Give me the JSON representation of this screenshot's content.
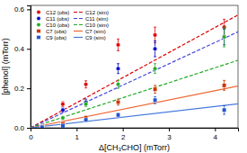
{
  "chart_data": {
    "type": "scatter",
    "xlabel": "Δ[CH₃CHO] (mTorr)",
    "ylabel": "[phenol] (mTorr)",
    "xlim": [
      0,
      4.5
    ],
    "ylim": [
      0,
      0.62
    ],
    "xticks": [
      0,
      1,
      2,
      3,
      4
    ],
    "yticks": [
      {
        "value": 0,
        "label": "0.0"
      },
      0.2,
      0.4,
      0.6
    ],
    "legend": "upper left",
    "series": [
      {
        "name": "C12 (obs)",
        "type": "scatter",
        "marker": "circle",
        "color": "#dd0000",
        "x": [
          0.25,
          0.7,
          1.2,
          1.9,
          2.7,
          4.2
        ],
        "values": [
          0.01,
          0.12,
          0.22,
          0.42,
          0.47,
          0.51
        ],
        "errors": [
          0.005,
          0.012,
          0.018,
          0.03,
          0.04,
          0.04
        ]
      },
      {
        "name": "C12 (sim)",
        "type": "line",
        "line_style": "dashed",
        "color": "#dd0000",
        "x": [
          0,
          4.5
        ],
        "values": [
          0,
          0.5715
        ]
      },
      {
        "name": "C11 (obs)",
        "type": "scatter",
        "marker": "circle",
        "color": "#0000cc",
        "x": [
          0.25,
          0.7,
          1.2,
          1.9,
          2.7,
          4.2
        ],
        "values": [
          0.01,
          0.09,
          0.13,
          0.3,
          0.4,
          0.46
        ],
        "errors": [
          0.005,
          0.01,
          0.015,
          0.025,
          0.04,
          0.04
        ]
      },
      {
        "name": "C11 (sim)",
        "type": "line",
        "line_style": "dashed",
        "color": "#4444dd",
        "x": [
          0,
          4.5
        ],
        "values": [
          0,
          0.486
        ]
      },
      {
        "name": "C10 (obs)",
        "type": "scatter",
        "marker": "circle",
        "color": "#22aa22",
        "x": [
          0.25,
          0.7,
          1.2,
          1.9,
          2.7,
          4.2
        ],
        "values": [
          0.005,
          0.05,
          0.12,
          0.22,
          0.3,
          0.46
        ],
        "errors": [
          0.004,
          0.008,
          0.012,
          0.02,
          0.025,
          0.05
        ]
      },
      {
        "name": "C10 (sim)",
        "type": "line",
        "line_style": "dashed",
        "color": "#22aa22",
        "x": [
          0,
          4.5
        ],
        "values": [
          0,
          0.342
        ]
      },
      {
        "name": "C7 (obs)",
        "type": "scatter",
        "marker": "square",
        "color": "#cc3300",
        "x": [
          0.25,
          0.7,
          1.2,
          1.9,
          2.7,
          4.2
        ],
        "values": [
          0.005,
          0.02,
          0.05,
          0.13,
          0.195,
          0.215
        ],
        "errors": [
          0.003,
          0.005,
          0.01,
          0.015,
          0.02,
          0.025
        ]
      },
      {
        "name": "C7 (sim)",
        "type": "line",
        "line_style": "solid",
        "color": "#ee6633",
        "x": [
          0,
          4.5
        ],
        "values": [
          0,
          0.2115
        ]
      },
      {
        "name": "C9 (obs)",
        "type": "scatter",
        "marker": "square",
        "color": "#2255cc",
        "x": [
          0.25,
          0.7,
          1.2,
          1.9,
          2.7,
          4.2
        ],
        "values": [
          0.003,
          0.01,
          0.04,
          0.065,
          0.14,
          0.09
        ],
        "errors": [
          0.002,
          0.004,
          0.007,
          0.01,
          0.018,
          0.022
        ]
      },
      {
        "name": "C9 (sim)",
        "type": "line",
        "line_style": "solid",
        "color": "#4477dd",
        "x": [
          0,
          4.5
        ],
        "values": [
          0,
          0.1215
        ]
      }
    ]
  }
}
